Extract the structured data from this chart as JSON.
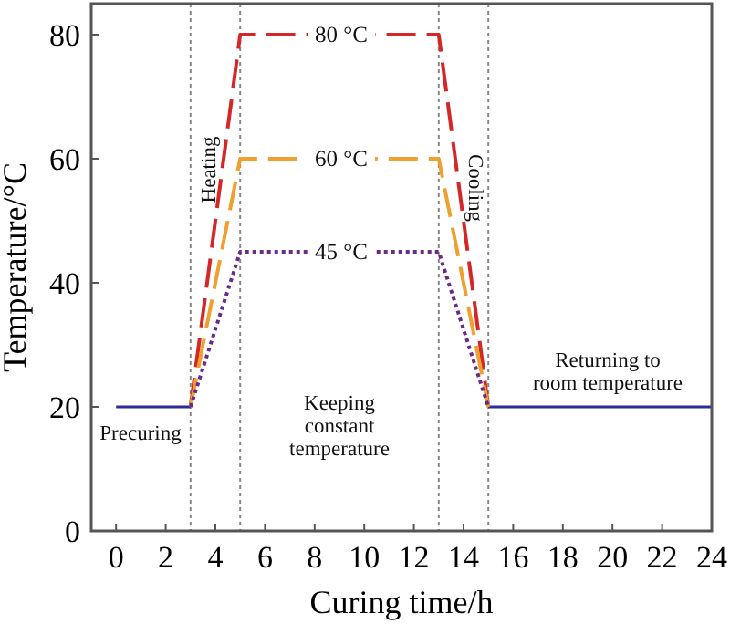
{
  "chart_data": {
    "type": "line",
    "xlabel": "Curing time/h",
    "ylabel": "Temperature/°C",
    "xlim": [
      -1,
      24
    ],
    "xticks": [
      0,
      2,
      4,
      6,
      8,
      10,
      12,
      14,
      16,
      18,
      20,
      22,
      24
    ],
    "ylim": [
      0,
      85
    ],
    "yticks": [
      0,
      20,
      40,
      60,
      80
    ],
    "grid": false,
    "marker": "none",
    "series": [
      {
        "color": "#2b2b9a",
        "line_style": "solid",
        "x": [
          0,
          3
        ],
        "values": [
          20,
          20
        ]
      },
      {
        "color": "#2b2b9a",
        "line_style": "solid",
        "x": [
          15,
          24
        ],
        "values": [
          20,
          20
        ]
      },
      {
        "color": "#d42828",
        "line_style": "dashed",
        "x": [
          3,
          5,
          13,
          15
        ],
        "values": [
          20,
          80,
          80,
          20
        ]
      },
      {
        "color": "#f0a030",
        "line_style": "dashed",
        "x": [
          3,
          5,
          13,
          15
        ],
        "values": [
          20,
          60,
          60,
          20
        ]
      },
      {
        "color": "#6a2a8a",
        "line_style": "dotted",
        "x": [
          3,
          5,
          13,
          15
        ],
        "values": [
          20,
          45,
          45,
          20
        ]
      }
    ],
    "ref_lines": [
      {
        "axis": "x",
        "value": 3,
        "color": "#888888",
        "line_style": "dotted"
      },
      {
        "axis": "x",
        "value": 5,
        "color": "#888888",
        "line_style": "dotted"
      },
      {
        "axis": "x",
        "value": 13,
        "color": "#888888",
        "line_style": "dotted"
      },
      {
        "axis": "x",
        "value": 15,
        "color": "#888888",
        "line_style": "dotted"
      }
    ],
    "annotations": [
      {
        "text": "80 °C",
        "y": 80
      },
      {
        "text": "60 °C",
        "y": 60
      },
      {
        "text": "45 °C",
        "y": 45
      },
      "Heating",
      "Cooling",
      "Precuring",
      "Keeping\nconstant\ntemperature",
      "Returning to\nroom temperature"
    ]
  }
}
